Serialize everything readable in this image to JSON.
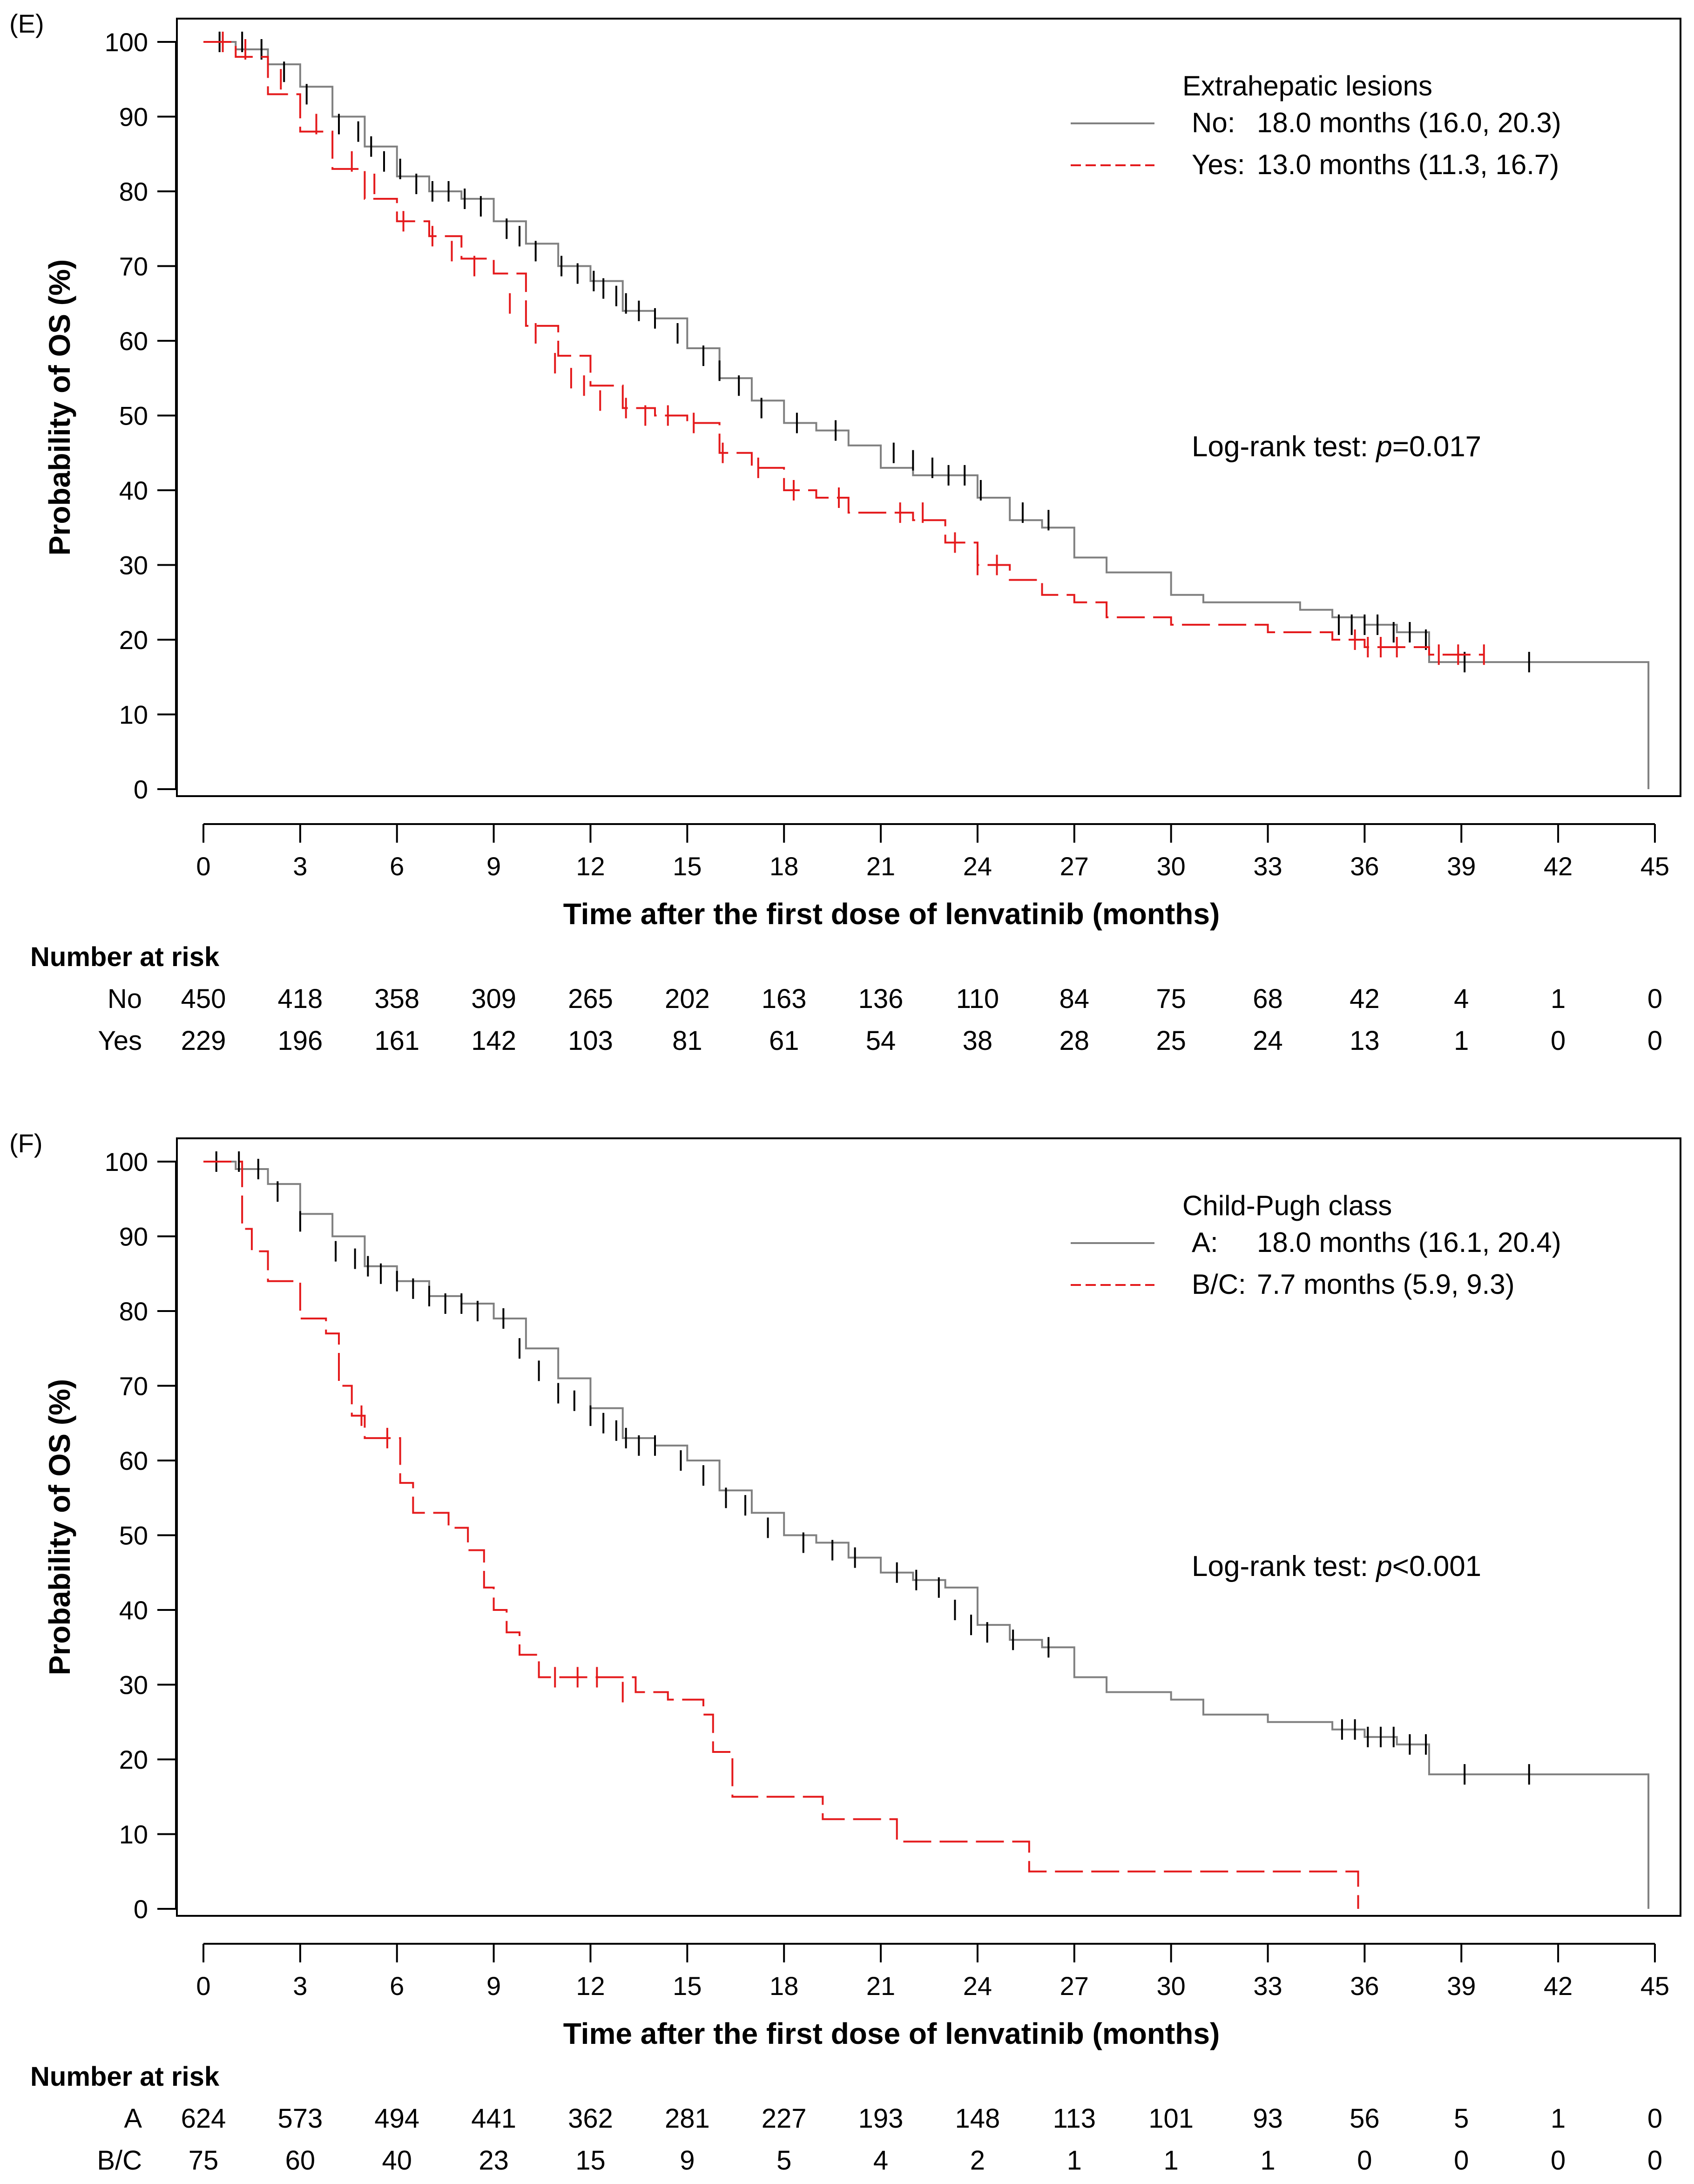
{
  "colors": {
    "group1": "#808080",
    "group2": "#e41a1c",
    "axis": "#000000",
    "censor": "#000000"
  },
  "chart_data": [
    {
      "panel_label": "(E)",
      "type": "line",
      "subtype": "kaplan-meier",
      "title": "",
      "xlabel": "Time after the first dose of lenvatinib (months)",
      "ylabel": "Probability of OS (%)",
      "xlim": [
        0,
        45
      ],
      "ylim": [
        0,
        100
      ],
      "xticks": [
        0,
        3,
        6,
        9,
        12,
        15,
        18,
        21,
        24,
        27,
        30,
        33,
        36,
        39,
        42,
        45
      ],
      "yticks": [
        0,
        10,
        20,
        30,
        40,
        50,
        60,
        70,
        80,
        90,
        100
      ],
      "grid": false,
      "legend_position": "top-right",
      "legend_title": "Extrahepatic lesions",
      "annotation": {
        "prefix": "Log-rank test: ",
        "italic": "p",
        "suffix": "=0.017"
      },
      "series": [
        {
          "name": "No",
          "legend_label": "No:",
          "legend_value": "18.0 months (16.0, 20.3)",
          "style": "solid",
          "x": [
            0,
            1,
            2,
            3,
            4,
            5,
            6,
            7,
            8,
            9,
            10,
            11,
            12,
            13,
            14,
            15,
            16,
            17,
            18,
            19,
            20,
            21,
            22,
            23,
            24,
            25,
            26,
            27,
            28,
            29,
            30,
            31,
            32,
            33,
            34,
            35,
            36,
            37,
            38,
            39,
            40,
            41,
            42,
            43,
            44,
            44.8,
            44.8
          ],
          "y": [
            100,
            99,
            97,
            94,
            90,
            86,
            82,
            80,
            79,
            76,
            73,
            70,
            68,
            64,
            63,
            59,
            55,
            52,
            49,
            48,
            46,
            43,
            42,
            42,
            39,
            36,
            35,
            31,
            29,
            29,
            26,
            25,
            25,
            25,
            24,
            23,
            22,
            21,
            17,
            17,
            17,
            17,
            17,
            17,
            17,
            17,
            0
          ],
          "censor_x": [
            0.5,
            1.2,
            1.8,
            2.5,
            3.2,
            4.2,
            4.8,
            5.2,
            5.6,
            6.1,
            6.6,
            7.1,
            7.6,
            8.1,
            8.6,
            9.4,
            9.8,
            10.3,
            11.1,
            11.6,
            12.1,
            12.4,
            12.8,
            13.1,
            13.5,
            14.0,
            14.7,
            15.5,
            16.0,
            16.6,
            17.3,
            18.4,
            19.6,
            21.4,
            22.0,
            22.6,
            23.1,
            23.6,
            24.1,
            25.4,
            26.2,
            35.2,
            35.6,
            36.0,
            36.4,
            36.9,
            37.4,
            37.9,
            39.1,
            41.1
          ],
          "censor_y": [
            100,
            100,
            99,
            96,
            93,
            89,
            88,
            86,
            84,
            83,
            81,
            80,
            80,
            79,
            78,
            75,
            74,
            72,
            70,
            69,
            68,
            67,
            66,
            65,
            64,
            63,
            61,
            58,
            56,
            54,
            51,
            49,
            48,
            45,
            44,
            43,
            42,
            42,
            40,
            37,
            36,
            22,
            22,
            22,
            22,
            21,
            21,
            20,
            17,
            17
          ]
        },
        {
          "name": "Yes",
          "legend_label": "Yes:",
          "legend_value": "13.0 months (11.3, 16.7)",
          "style": "dashed",
          "x": [
            0,
            1,
            2,
            3,
            4,
            5,
            6,
            7,
            8,
            9,
            10,
            11,
            12,
            13,
            14,
            15,
            16,
            17,
            18,
            19,
            20,
            21,
            22,
            23,
            24,
            25,
            26,
            27,
            28,
            29,
            30,
            31,
            32,
            33,
            34,
            35,
            36,
            37,
            38,
            39,
            39.7
          ],
          "y": [
            100,
            98,
            93,
            88,
            83,
            79,
            76,
            74,
            71,
            69,
            62,
            58,
            54,
            51,
            50,
            49,
            45,
            43,
            40,
            39,
            37,
            37,
            36,
            33,
            30,
            28,
            26,
            25,
            23,
            23,
            22,
            22,
            22,
            21,
            21,
            20,
            19,
            19,
            18,
            18,
            18
          ],
          "censor_x": [
            0.6,
            1.3,
            2.4,
            3.5,
            4.6,
            5.3,
            6.2,
            7.1,
            7.7,
            8.4,
            9.5,
            10.3,
            10.9,
            11.4,
            11.8,
            12.3,
            13.1,
            13.7,
            14.4,
            15.2,
            16.1,
            17.2,
            18.3,
            19.7,
            21.6,
            22.3,
            23.3,
            24.0,
            24.6,
            35.7,
            36.1,
            36.5,
            37.0,
            38.3,
            38.9,
            39.7
          ],
          "censor_y": [
            100,
            99,
            95,
            89,
            84,
            81,
            76,
            74,
            72,
            70,
            65,
            61,
            57,
            55,
            54,
            52,
            51,
            50,
            50,
            49,
            45,
            43,
            40,
            39,
            37,
            37,
            33,
            30,
            30,
            20,
            19,
            19,
            19,
            18,
            18,
            18
          ]
        }
      ],
      "risk_table": {
        "title": "Number at risk",
        "times": [
          0,
          3,
          6,
          9,
          12,
          15,
          18,
          21,
          24,
          27,
          30,
          33,
          36,
          39,
          42,
          45
        ],
        "rows": [
          {
            "label": "No",
            "values": [
              "450",
              "418",
              "358",
              "309",
              "265",
              "202",
              "163",
              "136",
              "110",
              "84",
              "75",
              "68",
              "42",
              "4",
              "1",
              "0"
            ]
          },
          {
            "label": "Yes",
            "values": [
              "229",
              "196",
              "161",
              "142",
              "103",
              "81",
              "61",
              "54",
              "38",
              "28",
              "25",
              "24",
              "13",
              "1",
              "0",
              "0"
            ]
          }
        ]
      }
    },
    {
      "panel_label": "(F)",
      "type": "line",
      "subtype": "kaplan-meier",
      "title": "",
      "xlabel": "Time after the first dose of lenvatinib (months)",
      "ylabel": "Probability of OS (%)",
      "xlim": [
        0,
        45
      ],
      "ylim": [
        0,
        100
      ],
      "xticks": [
        0,
        3,
        6,
        9,
        12,
        15,
        18,
        21,
        24,
        27,
        30,
        33,
        36,
        39,
        42,
        45
      ],
      "yticks": [
        0,
        10,
        20,
        30,
        40,
        50,
        60,
        70,
        80,
        90,
        100
      ],
      "grid": false,
      "legend_position": "top-right",
      "legend_title": "Child-Pugh class",
      "annotation": {
        "prefix": "Log-rank test: ",
        "italic": "p",
        "suffix": "<0.001"
      },
      "series": [
        {
          "name": "A",
          "legend_label": "A:",
          "legend_value": "18.0 months (16.1, 20.4)",
          "style": "solid",
          "x": [
            0,
            1,
            2,
            3,
            4,
            5,
            6,
            7,
            8,
            9,
            10,
            11,
            12,
            13,
            14,
            15,
            16,
            17,
            18,
            19,
            20,
            21,
            22,
            23,
            24,
            25,
            26,
            27,
            28,
            29,
            30,
            31,
            32,
            33,
            34,
            35,
            36,
            37,
            38,
            39,
            40,
            41,
            42,
            43,
            44,
            44.8,
            44.8
          ],
          "y": [
            100,
            99,
            97,
            93,
            90,
            86,
            84,
            82,
            81,
            79,
            75,
            71,
            67,
            63,
            62,
            60,
            56,
            53,
            50,
            49,
            47,
            45,
            44,
            43,
            38,
            36,
            35,
            31,
            29,
            29,
            28,
            26,
            26,
            25,
            25,
            24,
            23,
            22,
            18,
            18,
            18,
            18,
            18,
            18,
            18,
            18,
            0
          ],
          "censor_x": [
            0.4,
            1.1,
            1.7,
            2.3,
            3.0,
            4.1,
            4.7,
            5.1,
            5.5,
            6.0,
            6.5,
            7.0,
            7.5,
            8.0,
            8.5,
            9.3,
            9.8,
            10.4,
            11.0,
            11.5,
            12.0,
            12.4,
            12.8,
            13.1,
            13.5,
            14.0,
            14.8,
            15.5,
            16.2,
            16.8,
            17.5,
            18.6,
            19.5,
            20.2,
            21.5,
            22.1,
            22.8,
            23.3,
            23.8,
            24.3,
            25.1,
            26.2,
            35.3,
            35.7,
            36.1,
            36.5,
            36.9,
            37.4,
            37.9,
            39.1,
            41.1
          ],
          "censor_y": [
            100,
            100,
            99,
            96,
            92,
            88,
            87,
            86,
            85,
            84,
            83,
            82,
            81,
            81,
            80,
            79,
            75,
            72,
            69,
            68,
            66,
            65,
            64,
            63,
            62,
            62,
            60,
            58,
            55,
            54,
            51,
            49,
            48,
            47,
            45,
            44,
            43,
            40,
            38,
            37,
            36,
            35,
            24,
            24,
            23,
            23,
            23,
            22,
            22,
            18,
            18
          ]
        },
        {
          "name": "B/C",
          "legend_label": "B/C:",
          "legend_value": "7.7 months (5.9, 9.3)",
          "style": "dashed",
          "x": [
            0,
            1.2,
            1.5,
            2.0,
            2.5,
            3.0,
            3.8,
            4.2,
            4.6,
            5.0,
            5.6,
            6.1,
            6.5,
            7.0,
            7.6,
            8.2,
            8.7,
            9.0,
            9.4,
            9.8,
            10.4,
            12.5,
            13.4,
            14.4,
            15.5,
            15.8,
            16.4,
            19.2,
            21.5,
            25.6,
            35.8,
            35.8
          ],
          "y": [
            100,
            91,
            88,
            84,
            84,
            79,
            77,
            70,
            66,
            63,
            63,
            57,
            53,
            53,
            51,
            48,
            43,
            40,
            37,
            34,
            31,
            31,
            29,
            28,
            26,
            21,
            15,
            12,
            9,
            5,
            5,
            0
          ],
          "censor_x": [
            4.9,
            5.7,
            10.9,
            11.6,
            12.2,
            13.0
          ],
          "censor_y": [
            66,
            63,
            31,
            31,
            31,
            29
          ]
        }
      ],
      "risk_table": {
        "title": "Number at risk",
        "times": [
          0,
          3,
          6,
          9,
          12,
          15,
          18,
          21,
          24,
          27,
          30,
          33,
          36,
          39,
          42,
          45
        ],
        "rows": [
          {
            "label": "A",
            "values": [
              "624",
              "573",
              "494",
              "441",
              "362",
              "281",
              "227",
              "193",
              "148",
              "113",
              "101",
              "93",
              "56",
              "5",
              "1",
              "0"
            ]
          },
          {
            "label": "B/C",
            "values": [
              "75",
              "60",
              "40",
              "23",
              "15",
              "9",
              "5",
              "4",
              "2",
              "1",
              "1",
              "1",
              "0",
              "0",
              "0",
              "0"
            ]
          }
        ]
      }
    }
  ]
}
